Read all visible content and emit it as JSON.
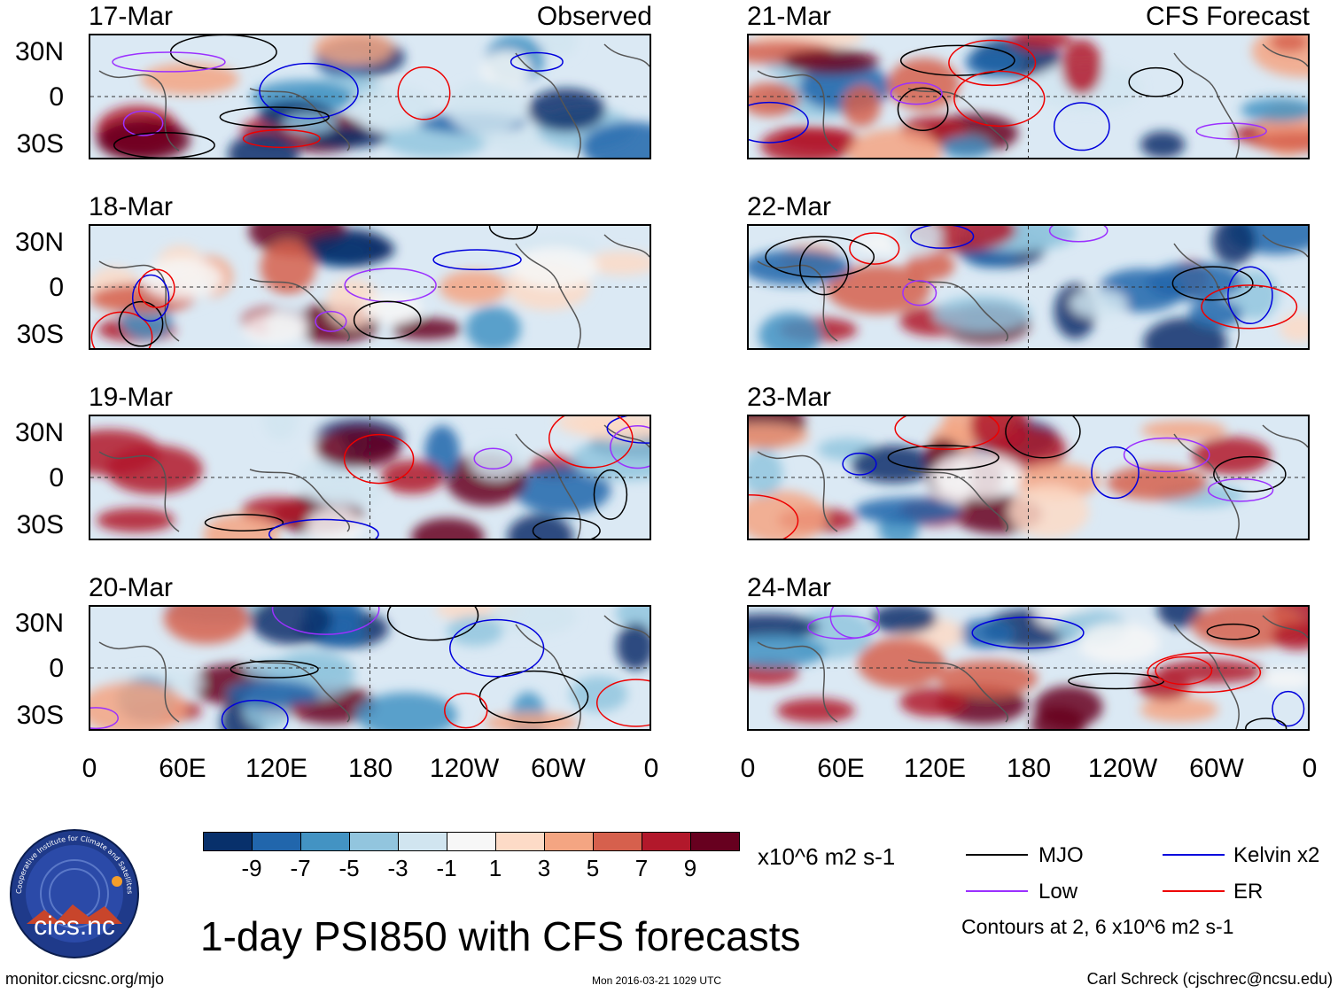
{
  "left_column": {
    "corner_label": "Observed",
    "panels": [
      {
        "date": "17-Mar"
      },
      {
        "date": "18-Mar"
      },
      {
        "date": "19-Mar"
      },
      {
        "date": "20-Mar"
      }
    ]
  },
  "right_column": {
    "corner_label": "CFS Forecast",
    "panels": [
      {
        "date": "21-Mar"
      },
      {
        "date": "22-Mar"
      },
      {
        "date": "23-Mar"
      },
      {
        "date": "24-Mar"
      }
    ]
  },
  "lat_labels": [
    "30N",
    "0",
    "30S"
  ],
  "lon_labels": [
    "0",
    "60E",
    "120E",
    "180",
    "120W",
    "60W",
    "0"
  ],
  "colorbar": {
    "colors": [
      "#08306b",
      "#2166ac",
      "#4393c3",
      "#92c5de",
      "#d1e5f0",
      "#f7f7f7",
      "#fddbc7",
      "#f4a582",
      "#d6604d",
      "#b2182b",
      "#67001f"
    ],
    "tick_labels": [
      "-9",
      "-7",
      "-5",
      "-3",
      "-1",
      "1",
      "3",
      "5",
      "7",
      "9"
    ],
    "units": "x10^6 m2 s-1"
  },
  "legend": {
    "items": [
      {
        "label": "MJO",
        "color": "#000000"
      },
      {
        "label": "Kelvin x2",
        "color": "#0000dd"
      },
      {
        "label": "Low",
        "color": "#9b30ff"
      },
      {
        "label": "ER",
        "color": "#ee0000"
      }
    ],
    "contours_note": "Contours at 2, 6 x10^6 m2 s-1"
  },
  "logo": {
    "text": "cics.nc",
    "ring_text": "Cooperative Institute for Climate and Satellites"
  },
  "title": "1-day PSI850 with CFS forecasts",
  "footer": {
    "url": "monitor.cicsnc.org/mjo",
    "timestamp": "Mon 2016-03-21 1029 UTC",
    "credit": "Carl Schreck (cjschrec@ncsu.edu)"
  }
}
